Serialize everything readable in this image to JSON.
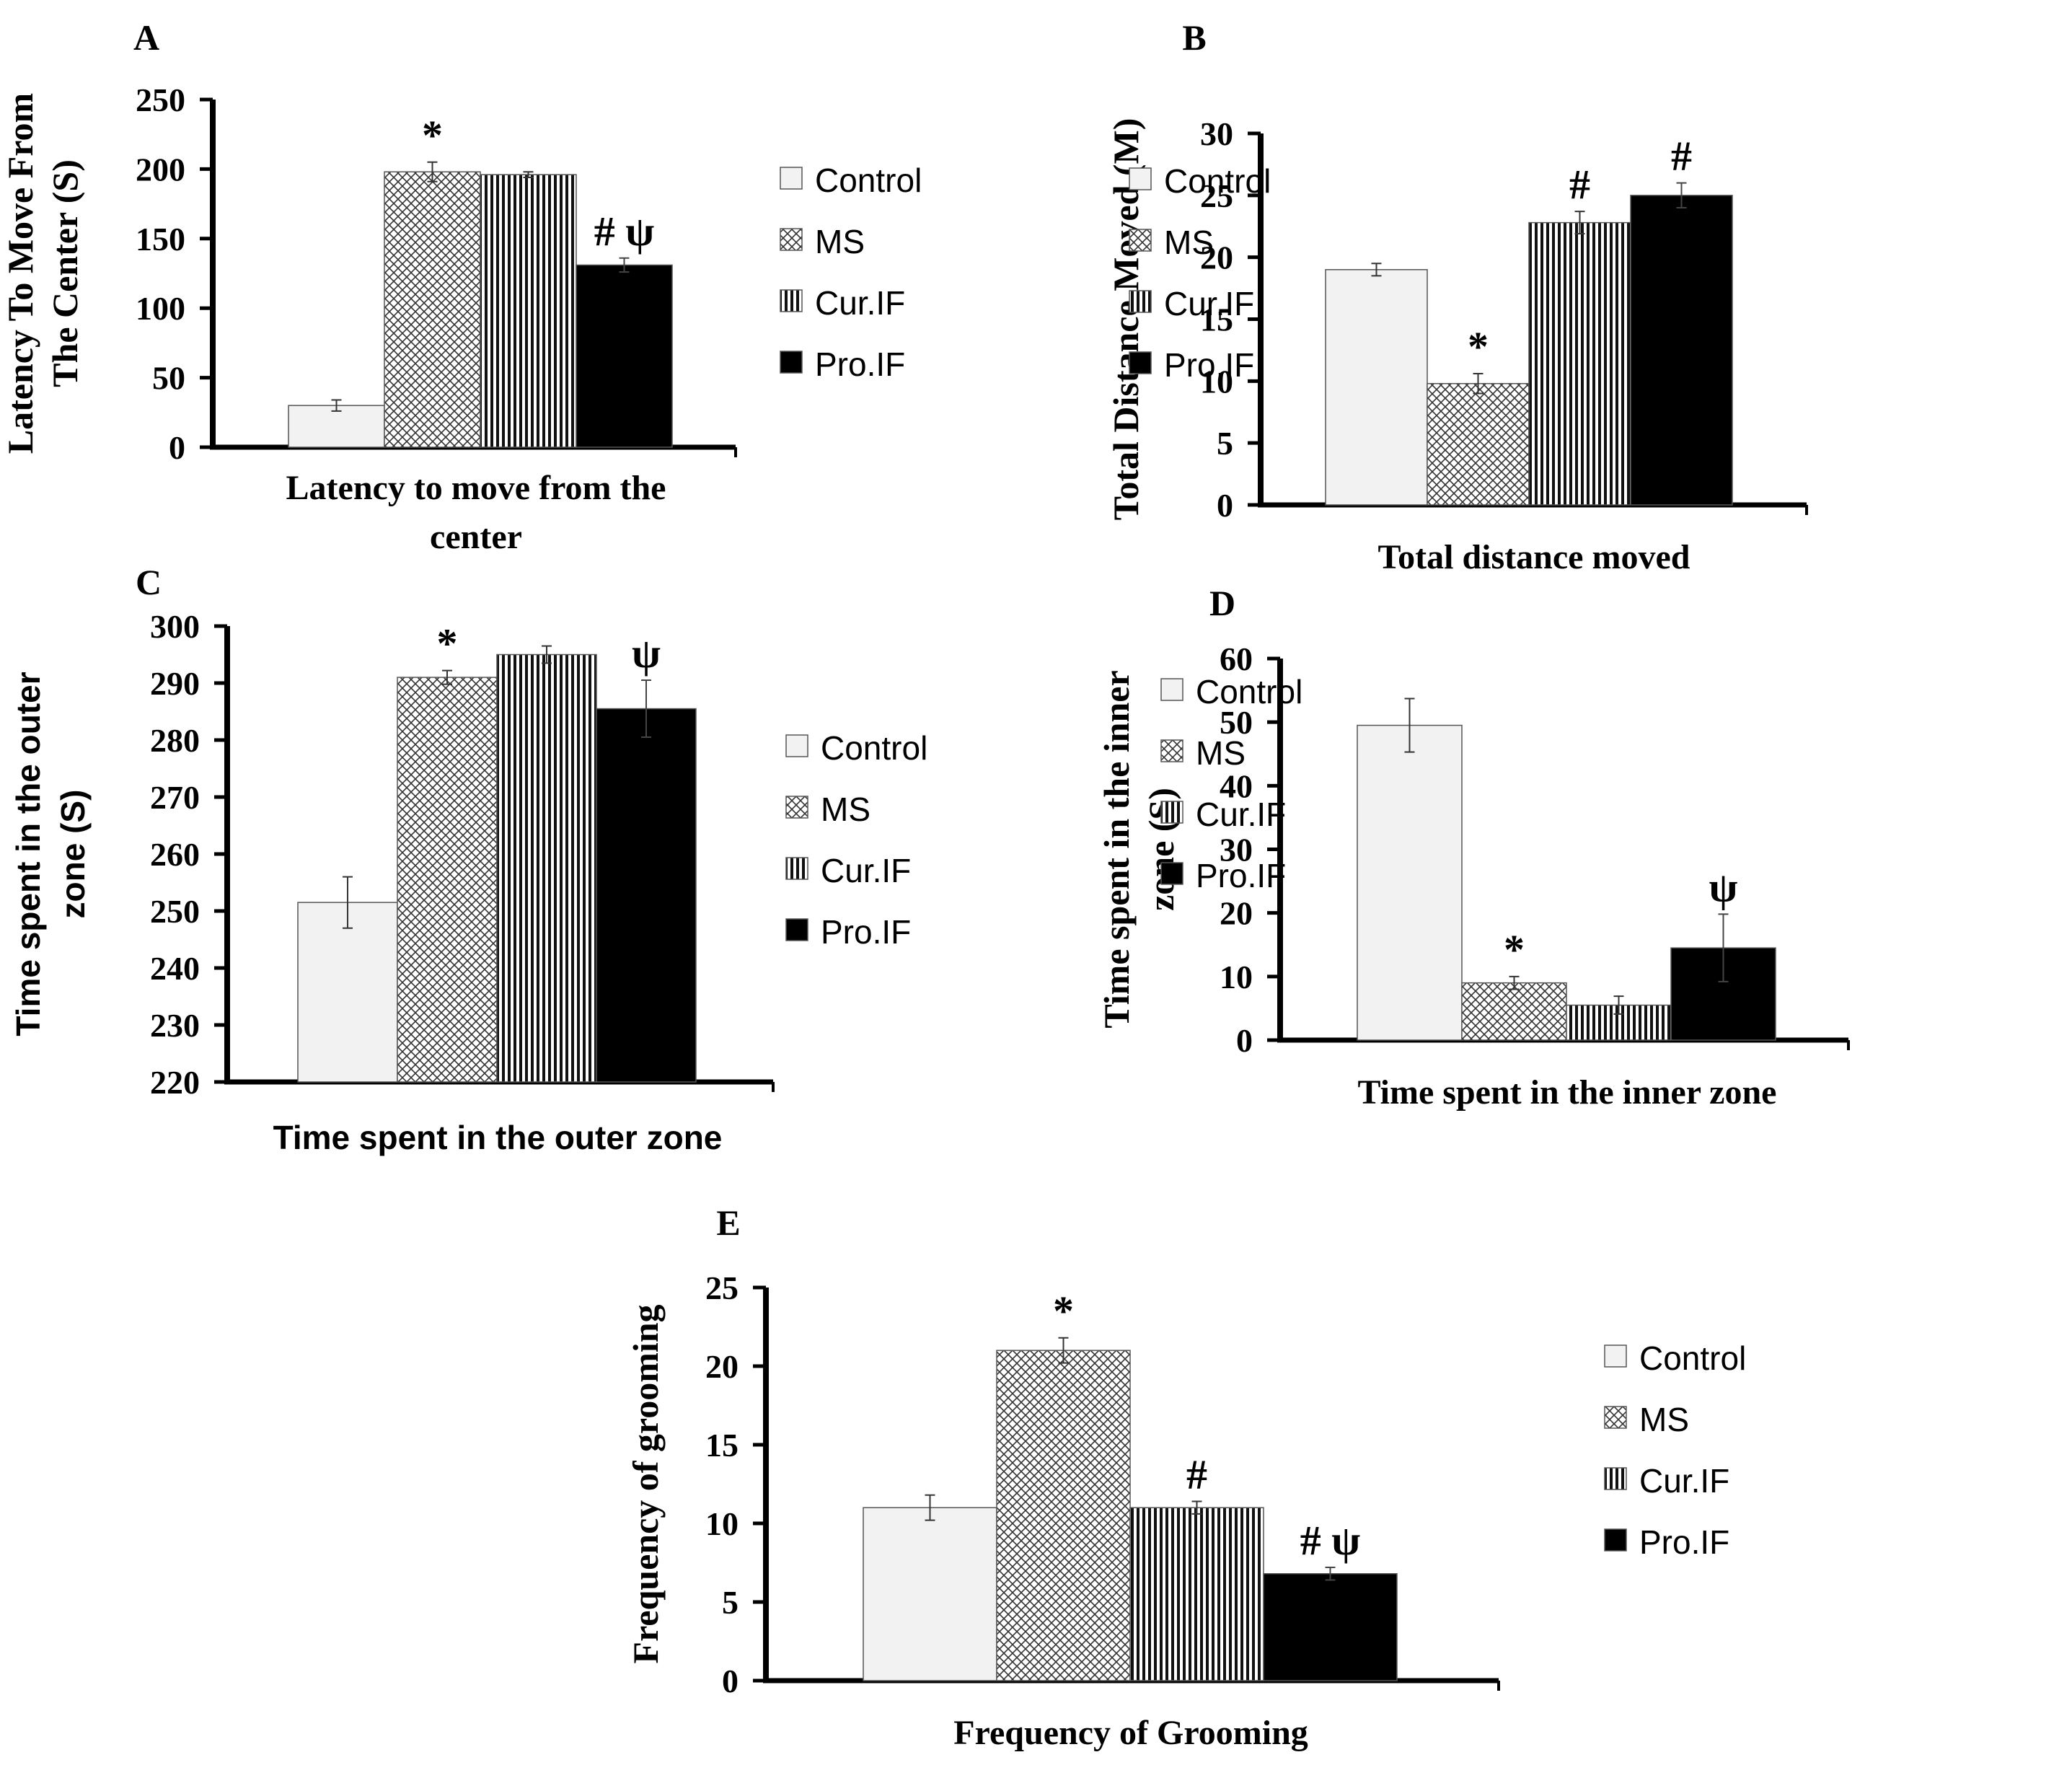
{
  "legend": {
    "labels": [
      "Control",
      "MS",
      "Cur.IF",
      "Pro.IF"
    ]
  },
  "colors": {
    "control_fill": "#f2f2f2",
    "pattern_stroke": "#333333",
    "pro_fill": "#000000",
    "axis": "#000000"
  },
  "chart_data": [
    {
      "panel_label": "A",
      "type": "bar",
      "categories": [
        "Control",
        "MS",
        "Cur.IF",
        "Pro.IF"
      ],
      "values": [
        30,
        198,
        196,
        131
      ],
      "errors": [
        4,
        7,
        2,
        5
      ],
      "annotations": [
        "",
        "*",
        "",
        "# ψ"
      ],
      "xlabel": "Latency to move from the center",
      "ylabel": "Latency To Move From The Center (S)",
      "ylim": [
        0,
        250
      ],
      "yticks": [
        "0",
        "50",
        "100",
        "150",
        "200",
        "250"
      ]
    },
    {
      "panel_label": "B",
      "type": "bar",
      "categories": [
        "Control",
        "MS",
        "Cur.IF",
        "Pro.IF"
      ],
      "values": [
        19,
        9.8,
        22.8,
        25
      ],
      "errors": [
        0.5,
        0.8,
        0.9,
        1
      ],
      "annotations": [
        "",
        "*",
        "#",
        "#"
      ],
      "xlabel": "Total distance moved",
      "ylabel": "Total Distance Moved (M)",
      "ylim": [
        0,
        30
      ],
      "yticks": [
        "0",
        "5",
        "10",
        "15",
        "20",
        "25",
        "30"
      ]
    },
    {
      "panel_label": "C",
      "type": "bar",
      "categories": [
        "Control",
        "MS",
        "Cur.IF",
        "Pro.IF"
      ],
      "values": [
        251.5,
        291,
        295,
        285.5
      ],
      "errors": [
        4.5,
        1.2,
        1.5,
        5
      ],
      "annotations": [
        "",
        "*",
        "",
        "ψ"
      ],
      "xlabel": "Time spent in the outer zone",
      "ylabel": "Time spent in the outer zone (S)",
      "ylim": [
        220,
        300
      ],
      "yticks": [
        "220",
        "230",
        "240",
        "250",
        "260",
        "270",
        "280",
        "290",
        "300"
      ]
    },
    {
      "panel_label": "D",
      "type": "bar",
      "categories": [
        "Control",
        "MS",
        "Cur.IF",
        "Pro.IF"
      ],
      "values": [
        49.5,
        9,
        5.5,
        14.5
      ],
      "errors": [
        4.2,
        1,
        1.4,
        5.3
      ],
      "annotations": [
        "",
        "*",
        "",
        "ψ"
      ],
      "xlabel": "Time spent in the inner zone",
      "ylabel": "Time spent in the inner zone (S)",
      "ylim": [
        0,
        60
      ],
      "yticks": [
        "0",
        "10",
        "20",
        "30",
        "40",
        "50",
        "60"
      ]
    },
    {
      "panel_label": "E",
      "type": "bar",
      "categories": [
        "Control",
        "MS",
        "Cur.IF",
        "Pro.IF"
      ],
      "values": [
        11,
        21,
        11,
        6.8
      ],
      "errors": [
        0.8,
        0.8,
        0.4,
        0.4
      ],
      "annotations": [
        "",
        "*",
        "#",
        "# ψ"
      ],
      "xlabel": "Frequency of Grooming",
      "ylabel": "Frequency of grooming",
      "ylim": [
        0,
        25
      ],
      "yticks": [
        "0",
        "5",
        "10",
        "15",
        "20",
        "25"
      ]
    }
  ]
}
